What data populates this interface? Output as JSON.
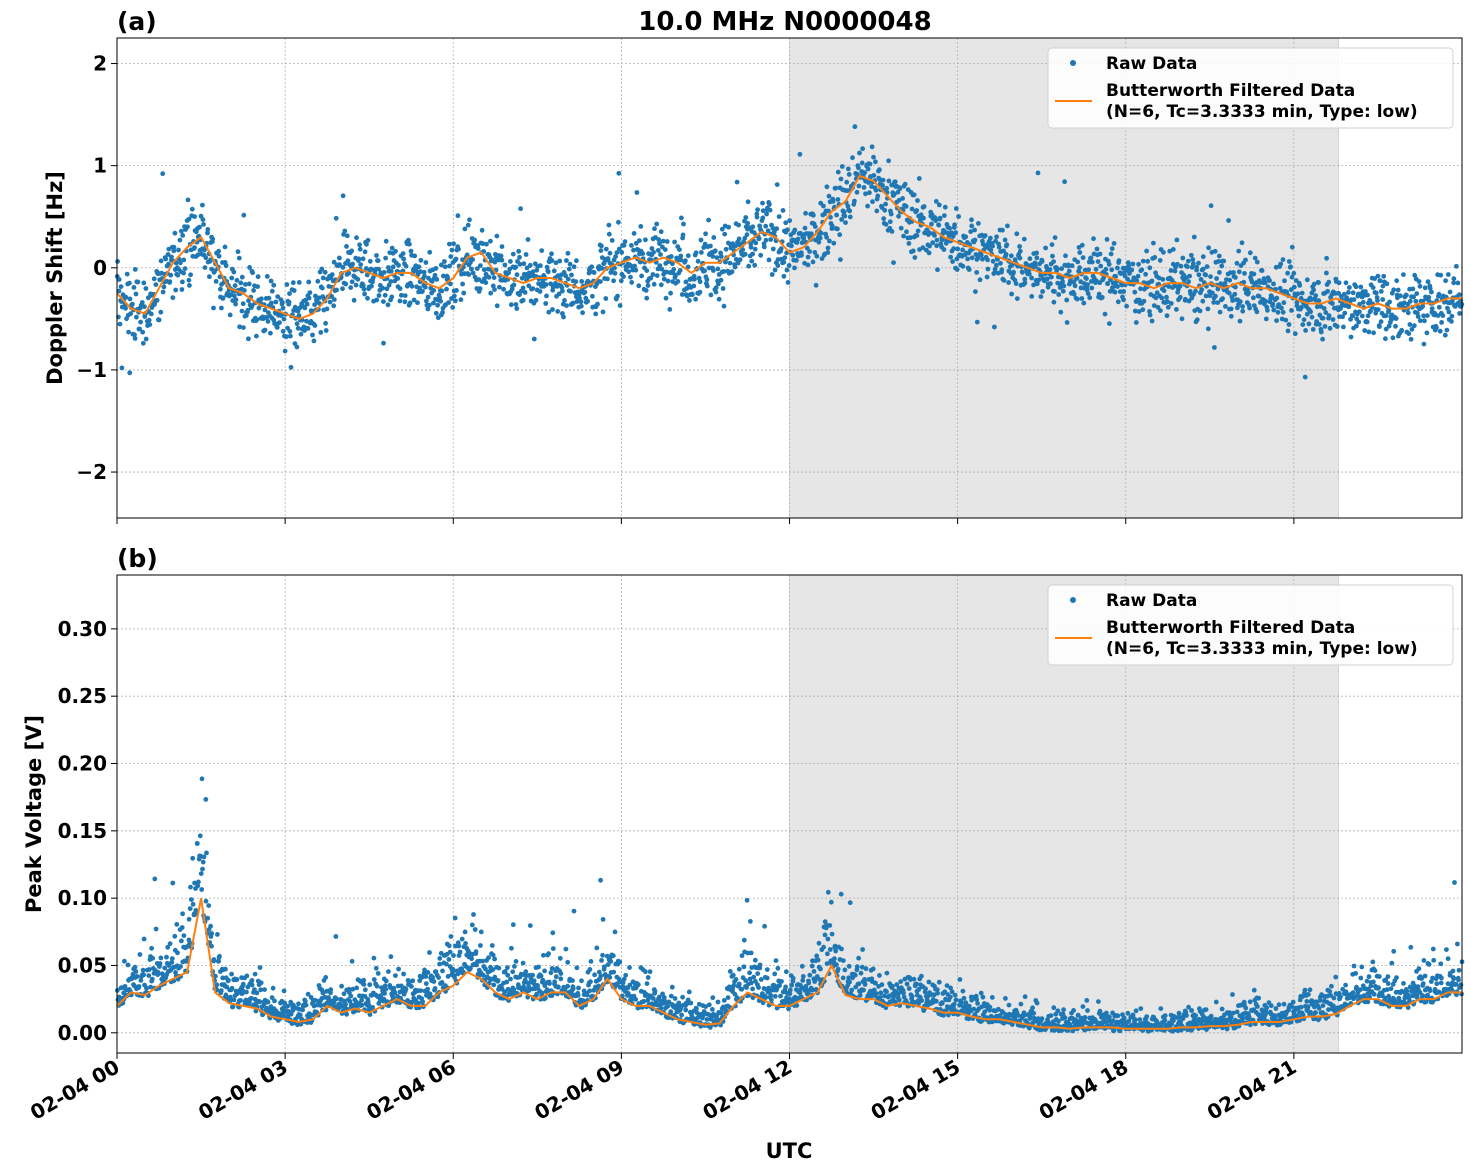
{
  "figure": {
    "title": "10.0 MHz N0000048",
    "xlabel": "UTC",
    "x_tick_labels": [
      "02-04 00",
      "02-04 03",
      "02-04 06",
      "02-04 09",
      "02-04 12",
      "02-04 15",
      "02-04 18",
      "02-04 21"
    ],
    "legend": {
      "raw_label": "Raw Data",
      "filtered_label_line1": "Butterworth Filtered Data",
      "filtered_label_line2": "(N=6, Tc=3.3333 min, Type: low)"
    },
    "colors": {
      "raw": "#1f77b4",
      "filtered": "#ff7f0e",
      "shade": "#e6e6e6",
      "grid": "#b0b0b0"
    }
  },
  "chart_data": [
    {
      "type": "scatter",
      "panel_label": "(a)",
      "ylabel": "Doppler Shift [Hz]",
      "xlim_hours": [
        0,
        24
      ],
      "ylim": [
        -2.45,
        2.25
      ],
      "y_ticks": [
        2,
        1,
        0,
        -1,
        -2
      ],
      "y_tick_labels": [
        "2",
        "1",
        "0",
        "−1",
        "−2"
      ],
      "shaded_span_hours": [
        12.0,
        21.8
      ],
      "grid": true,
      "legend_position": "upper right",
      "series": [
        {
          "name": "Raw Data",
          "kind": "points"
        },
        {
          "name": "Butterworth Filtered Data",
          "kind": "line",
          "x_hours": [
            0,
            0.25,
            0.5,
            0.75,
            1,
            1.25,
            1.5,
            1.75,
            2,
            2.25,
            2.5,
            2.75,
            3,
            3.25,
            3.5,
            3.75,
            4,
            4.25,
            4.5,
            4.75,
            5,
            5.25,
            5.5,
            5.75,
            6,
            6.25,
            6.5,
            6.75,
            7,
            7.25,
            7.5,
            7.75,
            8,
            8.25,
            8.5,
            8.75,
            9,
            9.25,
            9.5,
            9.75,
            10,
            10.25,
            10.5,
            10.75,
            11,
            11.25,
            11.5,
            11.75,
            12,
            12.25,
            12.5,
            12.75,
            13,
            13.25,
            13.5,
            13.75,
            14,
            14.25,
            14.5,
            14.75,
            15,
            15.25,
            15.5,
            15.75,
            16,
            16.25,
            16.5,
            16.75,
            17,
            17.25,
            17.5,
            17.75,
            18,
            18.25,
            18.5,
            18.75,
            19,
            19.25,
            19.5,
            19.75,
            20,
            20.25,
            20.5,
            20.75,
            21,
            21.25,
            21.5,
            21.75,
            22,
            22.25,
            22.5,
            22.75,
            23,
            23.25,
            23.5,
            23.75,
            24
          ],
          "y": [
            -0.25,
            -0.4,
            -0.45,
            -0.2,
            0.05,
            0.2,
            0.3,
            0.05,
            -0.2,
            -0.25,
            -0.35,
            -0.4,
            -0.45,
            -0.5,
            -0.45,
            -0.3,
            -0.05,
            0.0,
            -0.05,
            -0.1,
            -0.05,
            -0.05,
            -0.15,
            -0.2,
            -0.1,
            0.1,
            0.15,
            -0.05,
            -0.1,
            -0.15,
            -0.1,
            -0.1,
            -0.15,
            -0.2,
            -0.15,
            0.0,
            0.05,
            0.1,
            0.05,
            0.1,
            0.05,
            -0.05,
            0.05,
            0.05,
            0.15,
            0.25,
            0.35,
            0.3,
            0.15,
            0.2,
            0.35,
            0.55,
            0.65,
            0.9,
            0.85,
            0.7,
            0.55,
            0.45,
            0.4,
            0.3,
            0.25,
            0.2,
            0.15,
            0.1,
            0.05,
            0.0,
            -0.05,
            -0.05,
            -0.1,
            -0.05,
            -0.05,
            -0.1,
            -0.15,
            -0.15,
            -0.2,
            -0.15,
            -0.15,
            -0.2,
            -0.15,
            -0.2,
            -0.15,
            -0.2,
            -0.2,
            -0.25,
            -0.3,
            -0.35,
            -0.35,
            -0.3,
            -0.35,
            -0.4,
            -0.35,
            -0.4,
            -0.4,
            -0.35,
            -0.35,
            -0.3,
            -0.3
          ]
        }
      ]
    },
    {
      "type": "scatter",
      "panel_label": "(b)",
      "ylabel": "Peak Voltage [V]",
      "xlim_hours": [
        0,
        24
      ],
      "ylim": [
        -0.015,
        0.34
      ],
      "y_ticks": [
        0.3,
        0.25,
        0.2,
        0.15,
        0.1,
        0.05,
        0.0
      ],
      "y_tick_labels": [
        "0.30",
        "0.25",
        "0.20",
        "0.15",
        "0.10",
        "0.05",
        "0.00"
      ],
      "shaded_span_hours": [
        12.0,
        21.8
      ],
      "grid": true,
      "legend_position": "upper right",
      "series": [
        {
          "name": "Raw Data",
          "kind": "points"
        },
        {
          "name": "Butterworth Filtered Data",
          "kind": "line",
          "x_hours": [
            0,
            0.25,
            0.5,
            0.75,
            1,
            1.25,
            1.5,
            1.75,
            2,
            2.25,
            2.5,
            2.75,
            3,
            3.25,
            3.5,
            3.75,
            4,
            4.25,
            4.5,
            4.75,
            5,
            5.25,
            5.5,
            5.75,
            6,
            6.25,
            6.5,
            6.75,
            7,
            7.25,
            7.5,
            7.75,
            8,
            8.25,
            8.5,
            8.75,
            9,
            9.25,
            9.5,
            9.75,
            10,
            10.25,
            10.5,
            10.75,
            11,
            11.25,
            11.5,
            11.75,
            12,
            12.25,
            12.5,
            12.75,
            13,
            13.25,
            13.5,
            13.75,
            14,
            14.25,
            14.5,
            14.75,
            15,
            15.25,
            15.5,
            15.75,
            16,
            16.25,
            16.5,
            16.75,
            17,
            17.25,
            17.5,
            17.75,
            18,
            18.25,
            18.5,
            18.75,
            19,
            19.25,
            19.5,
            19.75,
            20,
            20.25,
            20.5,
            20.75,
            21,
            21.25,
            21.5,
            21.75,
            22,
            22.25,
            22.5,
            22.75,
            23,
            23.25,
            23.5,
            23.75,
            24
          ],
          "y": [
            0.02,
            0.03,
            0.028,
            0.035,
            0.04,
            0.045,
            0.1,
            0.03,
            0.022,
            0.02,
            0.018,
            0.012,
            0.01,
            0.008,
            0.01,
            0.02,
            0.015,
            0.018,
            0.015,
            0.02,
            0.025,
            0.02,
            0.02,
            0.03,
            0.035,
            0.045,
            0.04,
            0.03,
            0.025,
            0.03,
            0.025,
            0.03,
            0.03,
            0.02,
            0.025,
            0.04,
            0.025,
            0.02,
            0.02,
            0.015,
            0.01,
            0.008,
            0.006,
            0.007,
            0.02,
            0.03,
            0.025,
            0.02,
            0.02,
            0.025,
            0.03,
            0.05,
            0.028,
            0.025,
            0.025,
            0.02,
            0.022,
            0.02,
            0.018,
            0.015,
            0.015,
            0.012,
            0.01,
            0.01,
            0.008,
            0.006,
            0.004,
            0.004,
            0.003,
            0.004,
            0.004,
            0.004,
            0.003,
            0.003,
            0.003,
            0.003,
            0.004,
            0.004,
            0.005,
            0.005,
            0.006,
            0.008,
            0.008,
            0.008,
            0.01,
            0.012,
            0.012,
            0.014,
            0.02,
            0.025,
            0.025,
            0.02,
            0.02,
            0.025,
            0.025,
            0.03,
            0.03
          ]
        }
      ]
    }
  ]
}
